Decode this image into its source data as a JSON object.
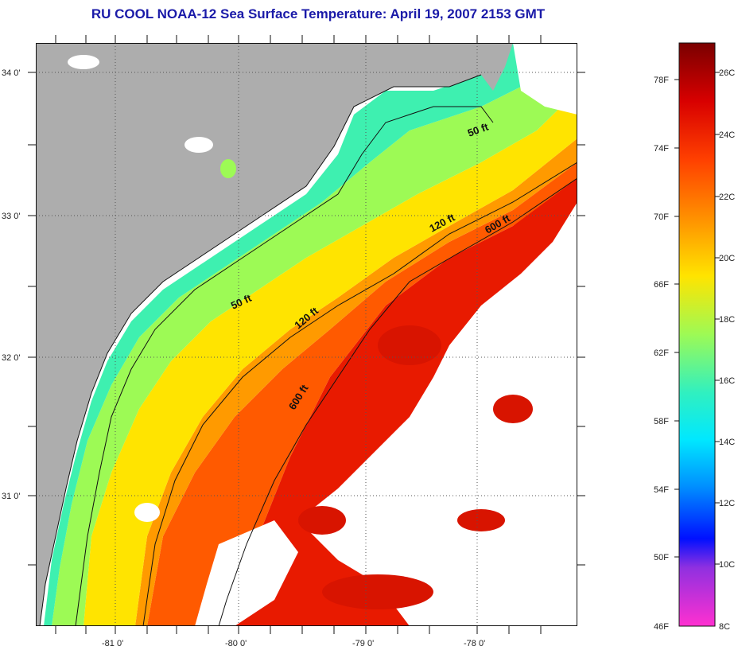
{
  "title": "RU COOL  NOAA-12  Sea Surface Temperature:  April 19, 2007 2153 GMT",
  "map": {
    "lon_ticks": [
      "-81 0'",
      "-80 0'",
      "-79 0'",
      "-78 0'"
    ],
    "lat_ticks": [
      "34 0'",
      "33 0'",
      "32 0'",
      "31 0'"
    ],
    "contours": [
      {
        "label": "50 ft"
      },
      {
        "label": "120 ft"
      },
      {
        "label": "600 ft"
      },
      {
        "label": "50 ft"
      },
      {
        "label": "120 ft"
      },
      {
        "label": "600 ft"
      }
    ],
    "colors": {
      "land": "#adadad",
      "cloud": "#ffffff",
      "grid": "#555555"
    }
  },
  "colorbar": {
    "fahrenheit": [
      "78F",
      "74F",
      "70F",
      "66F",
      "62F",
      "58F",
      "54F",
      "50F",
      "46F"
    ],
    "celsius": [
      "26C",
      "24C",
      "22C",
      "20C",
      "18C",
      "16C",
      "14C",
      "12C",
      "10C",
      "8C"
    ]
  }
}
